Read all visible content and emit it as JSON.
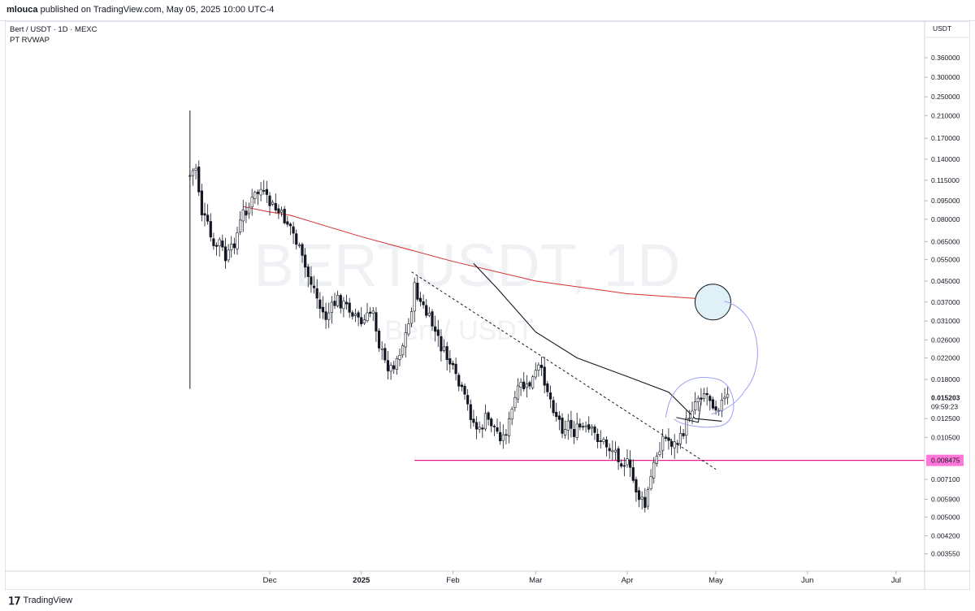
{
  "header": {
    "user": "mlouca",
    "text": "published on TradingView.com, May 05, 2025 10:00 UTC-4"
  },
  "legend": {
    "symbol": "Bert / USDT · 1D · MEXC",
    "indicator": "PT RVWAP"
  },
  "watermark": {
    "symbol": "BERTUSDT, 1D",
    "pair": "Bert / USDT"
  },
  "footer": {
    "brand": "TradingView"
  },
  "chart_data": {
    "type": "candlestick",
    "symbol": "BERTUSDT",
    "interval": "1D",
    "exchange": "MEXC",
    "price_axis": {
      "currency": "USDT",
      "scale": "log",
      "ticks": [
        0.36,
        0.3,
        0.25,
        0.21,
        0.17,
        0.14,
        0.115,
        0.095,
        0.08,
        0.065,
        0.055,
        0.045,
        0.037,
        0.031,
        0.026,
        0.022,
        0.018,
        0.0125,
        0.0105,
        0.0071,
        0.0059,
        0.005,
        0.0042,
        0.00355
      ],
      "tick_labels": [
        "0.360000",
        "0.300000",
        "0.250000",
        "0.210000",
        "0.170000",
        "0.140000",
        "0.115000",
        "0.095000",
        "0.080000",
        "0.065000",
        "0.055000",
        "0.045000",
        "0.037000",
        "0.031000",
        "0.026000",
        "0.022000",
        "0.018000",
        "0.012500",
        "0.010500",
        "0.007100",
        "0.005900",
        "0.005000",
        "0.004200",
        "0.003550"
      ],
      "last_price": 0.015203,
      "last_price_label": "0.015203",
      "countdown": "09:59:23",
      "marked_level": 0.008475,
      "marked_level_label": "0.008475"
    },
    "time_axis": {
      "labels": [
        {
          "label": "Dec",
          "date": "2024-12-01",
          "bold": false
        },
        {
          "label": "2025",
          "date": "2025-01-01",
          "bold": true
        },
        {
          "label": "Feb",
          "date": "2025-02-01",
          "bold": false
        },
        {
          "label": "Mar",
          "date": "2025-03-01",
          "bold": false
        },
        {
          "label": "Apr",
          "date": "2025-04-01",
          "bold": false
        },
        {
          "label": "May",
          "date": "2025-05-01",
          "bold": false
        },
        {
          "label": "Jun",
          "date": "2025-06-01",
          "bold": false
        },
        {
          "label": "Jul",
          "date": "2025-07-01",
          "bold": false
        }
      ]
    },
    "close_path": [
      [
        "2024-11-04",
        0.12
      ],
      [
        "2024-11-06",
        0.13
      ],
      [
        "2024-11-08",
        0.085
      ],
      [
        "2024-11-10",
        0.075
      ],
      [
        "2024-11-12",
        0.06
      ],
      [
        "2024-11-14",
        0.065
      ],
      [
        "2024-11-16",
        0.055
      ],
      [
        "2024-11-18",
        0.06
      ],
      [
        "2024-11-20",
        0.07
      ],
      [
        "2024-11-22",
        0.085
      ],
      [
        "2024-11-24",
        0.09
      ],
      [
        "2024-11-26",
        0.1
      ],
      [
        "2024-11-28",
        0.105
      ],
      [
        "2024-11-30",
        0.095
      ],
      [
        "2024-12-02",
        0.09
      ],
      [
        "2024-12-04",
        0.085
      ],
      [
        "2024-12-06",
        0.08
      ],
      [
        "2024-12-08",
        0.075
      ],
      [
        "2024-12-10",
        0.065
      ],
      [
        "2024-12-12",
        0.055
      ],
      [
        "2024-12-14",
        0.047
      ],
      [
        "2024-12-16",
        0.042
      ],
      [
        "2024-12-18",
        0.035
      ],
      [
        "2024-12-20",
        0.032
      ],
      [
        "2024-12-22",
        0.035
      ],
      [
        "2024-12-24",
        0.038
      ],
      [
        "2024-12-26",
        0.036
      ],
      [
        "2024-12-28",
        0.035
      ],
      [
        "2024-12-30",
        0.033
      ],
      [
        "2025-01-01",
        0.03
      ],
      [
        "2025-01-03",
        0.032
      ],
      [
        "2025-01-05",
        0.035
      ],
      [
        "2025-01-07",
        0.025
      ],
      [
        "2025-01-09",
        0.021
      ],
      [
        "2025-01-11",
        0.02
      ],
      [
        "2025-01-13",
        0.022
      ],
      [
        "2025-01-15",
        0.025
      ],
      [
        "2025-01-17",
        0.03
      ],
      [
        "2025-01-19",
        0.042
      ],
      [
        "2025-01-21",
        0.037
      ],
      [
        "2025-01-23",
        0.033
      ],
      [
        "2025-01-25",
        0.03
      ],
      [
        "2025-01-27",
        0.026
      ],
      [
        "2025-01-29",
        0.023
      ],
      [
        "2025-01-31",
        0.021
      ],
      [
        "2025-02-02",
        0.018
      ],
      [
        "2025-02-04",
        0.016
      ],
      [
        "2025-02-06",
        0.014
      ],
      [
        "2025-02-08",
        0.012
      ],
      [
        "2025-02-10",
        0.011
      ],
      [
        "2025-02-12",
        0.0125
      ],
      [
        "2025-02-14",
        0.012
      ],
      [
        "2025-02-16",
        0.011
      ],
      [
        "2025-02-18",
        0.0105
      ],
      [
        "2025-02-20",
        0.012
      ],
      [
        "2025-02-22",
        0.015
      ],
      [
        "2025-02-24",
        0.017
      ],
      [
        "2025-02-26",
        0.0165
      ],
      [
        "2025-02-28",
        0.018
      ],
      [
        "2025-03-02",
        0.02
      ],
      [
        "2025-03-04",
        0.018
      ],
      [
        "2025-03-06",
        0.015
      ],
      [
        "2025-03-08",
        0.013
      ],
      [
        "2025-03-10",
        0.0115
      ],
      [
        "2025-03-12",
        0.012
      ],
      [
        "2025-03-14",
        0.011
      ],
      [
        "2025-03-16",
        0.0115
      ],
      [
        "2025-03-18",
        0.0112
      ],
      [
        "2025-03-20",
        0.011
      ],
      [
        "2025-03-22",
        0.0105
      ],
      [
        "2025-03-24",
        0.01
      ],
      [
        "2025-03-26",
        0.0095
      ],
      [
        "2025-03-28",
        0.0092
      ],
      [
        "2025-03-30",
        0.0085
      ],
      [
        "2025-04-01",
        0.0082
      ],
      [
        "2025-04-03",
        0.007
      ],
      [
        "2025-04-05",
        0.006
      ],
      [
        "2025-04-07",
        0.0055
      ],
      [
        "2025-04-09",
        0.0072
      ],
      [
        "2025-04-11",
        0.009
      ],
      [
        "2025-04-13",
        0.0105
      ],
      [
        "2025-04-15",
        0.0102
      ],
      [
        "2025-04-17",
        0.0098
      ],
      [
        "2025-04-19",
        0.0103
      ],
      [
        "2025-04-21",
        0.012
      ],
      [
        "2025-04-23",
        0.014
      ],
      [
        "2025-04-25",
        0.0155
      ],
      [
        "2025-04-27",
        0.016
      ],
      [
        "2025-04-29",
        0.0152
      ],
      [
        "2025-05-01",
        0.014
      ],
      [
        "2025-05-03",
        0.0145
      ],
      [
        "2025-05-05",
        0.015203
      ]
    ],
    "rvwap_line": {
      "color": "#d32f2f",
      "points": [
        [
          "2024-11-22",
          0.09
        ],
        [
          "2024-11-30",
          0.086
        ],
        [
          "2024-12-08",
          0.083
        ],
        [
          "2025-01-01",
          0.068
        ],
        [
          "2025-02-01",
          0.054
        ],
        [
          "2025-03-01",
          0.045
        ],
        [
          "2025-04-01",
          0.04
        ],
        [
          "2025-05-05",
          0.0375
        ]
      ]
    },
    "black_line": {
      "color": "#131722",
      "points": [
        [
          "2025-02-08",
          0.053
        ],
        [
          "2025-02-16",
          0.042
        ],
        [
          "2025-03-01",
          0.028
        ],
        [
          "2025-03-15",
          0.022
        ],
        [
          "2025-04-01",
          0.0185
        ],
        [
          "2025-04-15",
          0.016
        ],
        [
          "2025-04-24",
          0.0125
        ],
        [
          "2025-05-03",
          0.0122
        ]
      ]
    },
    "trendline_dashed": {
      "color": "#131722",
      "points": [
        [
          "2025-01-18",
          0.049
        ],
        [
          "2025-05-01",
          0.0078
        ]
      ]
    },
    "horizontal_level": {
      "color": "#e91e8c",
      "value": 0.008475,
      "from": "2025-01-19"
    },
    "circle_target": {
      "center": [
        "2025-04-30",
        0.037
      ],
      "fill": "#dff0f7"
    },
    "projection_path": {
      "color": "#9c9ff2"
    }
  }
}
